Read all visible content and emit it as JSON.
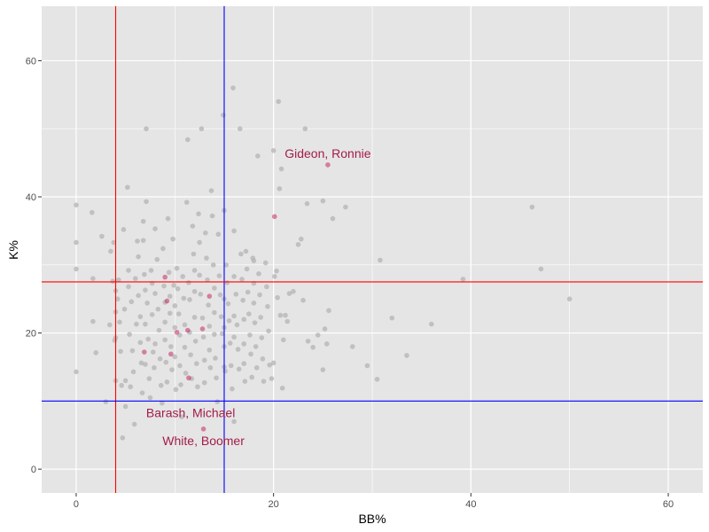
{
  "chart_data": {
    "type": "scatter",
    "xlabel": "BB%",
    "ylabel": "K%",
    "xlim": [
      -3.5,
      63.5
    ],
    "ylim": [
      -3.5,
      68
    ],
    "x_ticks": [
      0,
      20,
      40,
      60
    ],
    "y_ticks": [
      0,
      20,
      40,
      60
    ],
    "x_tick_labels": [
      "0",
      "20",
      "40",
      "60"
    ],
    "y_tick_labels": [
      "0",
      "20",
      "40",
      "60"
    ],
    "grid": true,
    "reference_lines": [
      {
        "orientation": "vertical",
        "value": 4,
        "color": "#ff0000"
      },
      {
        "orientation": "vertical",
        "value": 15,
        "color": "#0000ff"
      },
      {
        "orientation": "horizontal",
        "value": 27.5,
        "color": "#ff0000"
      },
      {
        "orientation": "horizontal",
        "value": 10,
        "color": "#0000ff"
      }
    ],
    "colors": {
      "background": "#e5e5e5",
      "grid": "#ffffff",
      "all_players": "#b3b3b3",
      "highlight": "#c2185b",
      "label_text": "#a31c4a"
    },
    "series": [
      {
        "points": [
          [
            0,
            38.8
          ],
          [
            0,
            33.3
          ],
          [
            0,
            29.4
          ],
          [
            0,
            14.3
          ],
          [
            1.6,
            37.7
          ],
          [
            1.7,
            21.7
          ],
          [
            1.7,
            28
          ],
          [
            2,
            17.1
          ],
          [
            2.6,
            34.2
          ],
          [
            3,
            9.9
          ],
          [
            3.4,
            21.2
          ],
          [
            3.5,
            32
          ],
          [
            3.7,
            27.6
          ],
          [
            3.8,
            33.3
          ],
          [
            3.9,
            18.9
          ],
          [
            4,
            26.2
          ],
          [
            4,
            23.1
          ],
          [
            4,
            13
          ],
          [
            4,
            19.3
          ],
          [
            4.2,
            25
          ],
          [
            4.3,
            27.8
          ],
          [
            4.4,
            21.6
          ],
          [
            4.5,
            17.3
          ],
          [
            4.6,
            12.3
          ],
          [
            4.7,
            4.6
          ],
          [
            4.8,
            35.2
          ],
          [
            4.9,
            23.5
          ],
          [
            5,
            13
          ],
          [
            5,
            9.2
          ],
          [
            5.2,
            41.4
          ],
          [
            5.3,
            29.2
          ],
          [
            5.3,
            26.8
          ],
          [
            5.4,
            19.8
          ],
          [
            5.5,
            12.1
          ],
          [
            5.6,
            24.6
          ],
          [
            5.7,
            17.4
          ],
          [
            5.8,
            14.3
          ],
          [
            5.9,
            6.6
          ],
          [
            6,
            28
          ],
          [
            6.1,
            21.3
          ],
          [
            6.2,
            33.5
          ],
          [
            6.3,
            31.2
          ],
          [
            6.3,
            25.5
          ],
          [
            6.5,
            22.4
          ],
          [
            6.5,
            18.6
          ],
          [
            6.6,
            15.6
          ],
          [
            6.7,
            11.2
          ],
          [
            6.8,
            36.4
          ],
          [
            6.8,
            33.6
          ],
          [
            6.9,
            28.6
          ],
          [
            7,
            26.3
          ],
          [
            7,
            21.3
          ],
          [
            7,
            15.4
          ],
          [
            7.1,
            50
          ],
          [
            7.1,
            39.3
          ],
          [
            7.2,
            24.4
          ],
          [
            7.3,
            19.1
          ],
          [
            7.4,
            13.3
          ],
          [
            7.5,
            10.5
          ],
          [
            7.6,
            29.2
          ],
          [
            7.7,
            27.3
          ],
          [
            7.7,
            22.7
          ],
          [
            7.8,
            17.2
          ],
          [
            7.9,
            14.9
          ],
          [
            8,
            35.3
          ],
          [
            8,
            25.8
          ],
          [
            8,
            18.4
          ],
          [
            8.2,
            30.8
          ],
          [
            8.3,
            23.5
          ],
          [
            8.4,
            20.4
          ],
          [
            8.5,
            16.2
          ],
          [
            8.6,
            12.3
          ],
          [
            8.7,
            9.7
          ],
          [
            8.8,
            32.4
          ],
          [
            8.9,
            26.9
          ],
          [
            9,
            24.5
          ],
          [
            9,
            21.6
          ],
          [
            9,
            19
          ],
          [
            9.1,
            15.7
          ],
          [
            9.2,
            12.8
          ],
          [
            9.3,
            36.8
          ],
          [
            9.4,
            28.9
          ],
          [
            9.5,
            25.4
          ],
          [
            9.5,
            22.9
          ],
          [
            9.6,
            18
          ],
          [
            9.7,
            14.6
          ],
          [
            9.8,
            33.8
          ],
          [
            9.9,
            27
          ],
          [
            10,
            24
          ],
          [
            10,
            20.8
          ],
          [
            10,
            16.5
          ],
          [
            10.1,
            11.7
          ],
          [
            10.2,
            29.5
          ],
          [
            10.3,
            26.5
          ],
          [
            10.4,
            22.8
          ],
          [
            10.5,
            19.7
          ],
          [
            10.5,
            15.2
          ],
          [
            10.6,
            12.4
          ],
          [
            10.7,
            7.7
          ],
          [
            10.8,
            28.3
          ],
          [
            10.9,
            25.1
          ],
          [
            11,
            21.2
          ],
          [
            11,
            17.9
          ],
          [
            11.1,
            14.1
          ],
          [
            11.2,
            39.2
          ],
          [
            11.3,
            48.4
          ],
          [
            11.4,
            27.4
          ],
          [
            11.5,
            24.9
          ],
          [
            11.5,
            20.1
          ],
          [
            11.6,
            16.8
          ],
          [
            11.7,
            13.3
          ],
          [
            11.8,
            35.7
          ],
          [
            11.9,
            31.6
          ],
          [
            12,
            29.2
          ],
          [
            12,
            26.1
          ],
          [
            12,
            22.3
          ],
          [
            12.1,
            18.8
          ],
          [
            12.2,
            15.5
          ],
          [
            12.3,
            12.1
          ],
          [
            12.4,
            37.5
          ],
          [
            12.5,
            33.3
          ],
          [
            12.5,
            28.5
          ],
          [
            12.6,
            25.7
          ],
          [
            12.7,
            50
          ],
          [
            12.8,
            22.2
          ],
          [
            12.9,
            19.4
          ],
          [
            13,
            16
          ],
          [
            13,
            12.7
          ],
          [
            13.1,
            34.7
          ],
          [
            13.2,
            31
          ],
          [
            13.3,
            27.8
          ],
          [
            13.4,
            24.1
          ],
          [
            13.5,
            21
          ],
          [
            13.5,
            17.5
          ],
          [
            13.6,
            14.9
          ],
          [
            13.7,
            40.9
          ],
          [
            13.8,
            37.2
          ],
          [
            13.9,
            30
          ],
          [
            14,
            26.6
          ],
          [
            14,
            23
          ],
          [
            14,
            19.8
          ],
          [
            14.1,
            16.3
          ],
          [
            14.2,
            13.4
          ],
          [
            14.3,
            9.9
          ],
          [
            14.4,
            34.5
          ],
          [
            14.5,
            28.4
          ],
          [
            14.6,
            25.6
          ],
          [
            14.7,
            22.4
          ],
          [
            14.8,
            19.9
          ],
          [
            14.9,
            52
          ],
          [
            15,
            38
          ],
          [
            15,
            25
          ],
          [
            15,
            20.8
          ],
          [
            15,
            18
          ],
          [
            15,
            15
          ],
          [
            15.1,
            14.4
          ],
          [
            15.2,
            30
          ],
          [
            15.3,
            27.4
          ],
          [
            15.4,
            24.3
          ],
          [
            15.5,
            21.8
          ],
          [
            15.6,
            18.5
          ],
          [
            15.7,
            15.2
          ],
          [
            15.8,
            11.8
          ],
          [
            15.9,
            56
          ],
          [
            16,
            35
          ],
          [
            16,
            28.3
          ],
          [
            16,
            22.5
          ],
          [
            16,
            19.4
          ],
          [
            16,
            7
          ],
          [
            16.2,
            25.7
          ],
          [
            16.3,
            21.2
          ],
          [
            16.4,
            17.6
          ],
          [
            16.5,
            14.7
          ],
          [
            16.6,
            50
          ],
          [
            16.7,
            31.6
          ],
          [
            16.8,
            27.9
          ],
          [
            16.9,
            24.8
          ],
          [
            17,
            22
          ],
          [
            17,
            18.4
          ],
          [
            17,
            15.5
          ],
          [
            17.1,
            12.9
          ],
          [
            17.2,
            32
          ],
          [
            17.3,
            29.4
          ],
          [
            17.4,
            26
          ],
          [
            17.5,
            22.8
          ],
          [
            17.6,
            19.7
          ],
          [
            17.7,
            16.9
          ],
          [
            17.8,
            13.5
          ],
          [
            17.9,
            31
          ],
          [
            18,
            30.6
          ],
          [
            18,
            27.3
          ],
          [
            18,
            24.4
          ],
          [
            18.1,
            21.5
          ],
          [
            18.2,
            18
          ],
          [
            18.3,
            14.9
          ],
          [
            18.4,
            46
          ],
          [
            18.5,
            28.7
          ],
          [
            18.6,
            25.6
          ],
          [
            18.7,
            22.3
          ],
          [
            18.8,
            19.3
          ],
          [
            18.9,
            16.2
          ],
          [
            19,
            12.9
          ],
          [
            19.2,
            30.3
          ],
          [
            19.3,
            26.8
          ],
          [
            19.4,
            23.9
          ],
          [
            19.5,
            20.3
          ],
          [
            19.6,
            15.3
          ],
          [
            19.8,
            13.3
          ],
          [
            20,
            46.8
          ],
          [
            20,
            15.6
          ],
          [
            20.1,
            28.3
          ],
          [
            20.3,
            29.1
          ],
          [
            20.4,
            25.2
          ],
          [
            20.5,
            54
          ],
          [
            20.6,
            41.2
          ],
          [
            20.7,
            22.6
          ],
          [
            20.8,
            44.1
          ],
          [
            20.9,
            11.9
          ],
          [
            21,
            19
          ],
          [
            21.2,
            22.6
          ],
          [
            21.4,
            21.7
          ],
          [
            21.6,
            25.8
          ],
          [
            22,
            26.1
          ],
          [
            22.5,
            33
          ],
          [
            22.8,
            33.8
          ],
          [
            23,
            24.8
          ],
          [
            23.2,
            50
          ],
          [
            23.4,
            39
          ],
          [
            23.5,
            18.8
          ],
          [
            24,
            17.9
          ],
          [
            24.5,
            19.7
          ],
          [
            25,
            39.4
          ],
          [
            25,
            14.6
          ],
          [
            25.2,
            20.6
          ],
          [
            25.4,
            18.4
          ],
          [
            25.6,
            23.3
          ],
          [
            26,
            36.8
          ],
          [
            27.3,
            38.5
          ],
          [
            28,
            18
          ],
          [
            29.5,
            15.2
          ],
          [
            30.5,
            13.2
          ],
          [
            30.8,
            30.7
          ],
          [
            32,
            22.2
          ],
          [
            33.5,
            16.7
          ],
          [
            36,
            21.3
          ],
          [
            39.2,
            27.9
          ],
          [
            46.2,
            38.5
          ],
          [
            47.1,
            29.4
          ],
          [
            50,
            25
          ]
        ]
      },
      {
        "points": [
          [
            6.9,
            17.2
          ],
          [
            9,
            28.2
          ],
          [
            9.2,
            24.7
          ],
          [
            9.6,
            16.9
          ],
          [
            10.2,
            20.1
          ],
          [
            11.3,
            20.4
          ],
          [
            11.4,
            13.4
          ],
          [
            12.8,
            20.6
          ],
          [
            13.5,
            25.4
          ],
          [
            20.1,
            37.1
          ],
          [
            25.5,
            44.7
          ],
          [
            12.9,
            5.9
          ]
        ]
      }
    ],
    "annotations": [
      {
        "text": "Gideon, Ronnie",
        "x": 25.5,
        "y": 44.7,
        "dy": -13
      },
      {
        "text": "Barash, Michael",
        "x": 11.6,
        "y": 8.3,
        "dy": 0
      },
      {
        "text": "White, Boomer",
        "x": 12.9,
        "y": 5.9,
        "dy": 13
      }
    ]
  }
}
